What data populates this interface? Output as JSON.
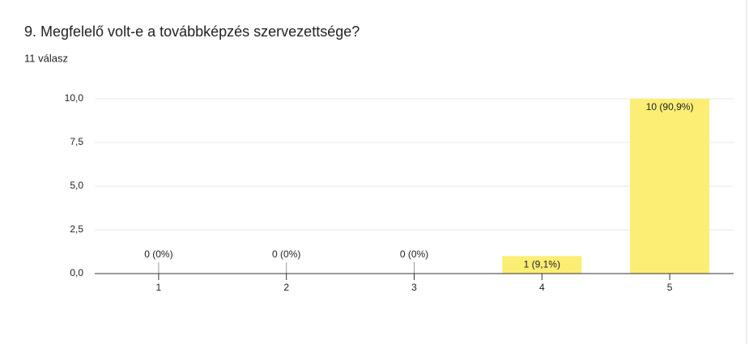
{
  "chart_data": {
    "type": "bar",
    "title": "9. Megfelelő volt-e a továbbképzés szervezettsége?",
    "subtitle": "11 válasz",
    "categories": [
      "1",
      "2",
      "3",
      "4",
      "5"
    ],
    "values": [
      0,
      0,
      0,
      1,
      10
    ],
    "value_labels": [
      "0 (0%)",
      "0 (0%)",
      "0 (0%)",
      "1 (9,1%)",
      "10 (90,9%)"
    ],
    "color": "#fcee74",
    "ylim": [
      0,
      10
    ],
    "yticks": [
      {
        "value": 0,
        "label": "0,0"
      },
      {
        "value": 2.5,
        "label": "2,5"
      },
      {
        "value": 5,
        "label": "5,0"
      },
      {
        "value": 7.5,
        "label": "7,5"
      },
      {
        "value": 10,
        "label": "10,0"
      }
    ],
    "grid": true
  }
}
